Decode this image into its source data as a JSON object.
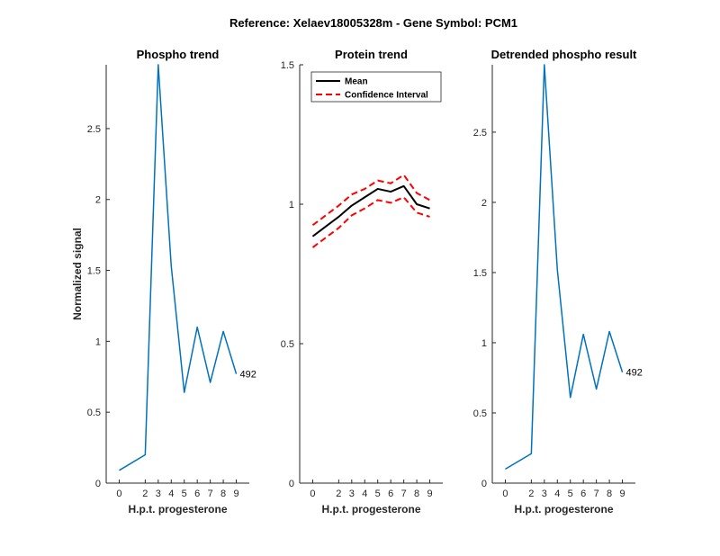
{
  "figure": {
    "suptitle": "Reference:  Xelaev18005328m - Gene Symbol:  PCM1"
  },
  "chart_data": [
    {
      "type": "line",
      "title": "Phospho trend",
      "xlabel": "H.p.t. progesterone",
      "ylabel": "Normalized signal",
      "x": [
        0,
        2,
        3,
        4,
        5,
        6,
        7,
        8,
        9
      ],
      "xticks": [
        "0",
        "2",
        "3",
        "4",
        "5",
        "6",
        "7",
        "8",
        "9"
      ],
      "ylim": [
        0,
        2.95
      ],
      "yticks": [
        "0",
        "0.5",
        "1",
        "1.5",
        "2",
        "2.5"
      ],
      "series": [
        {
          "values": [
            0.09,
            0.2,
            2.95,
            1.53,
            0.64,
            1.1,
            0.71,
            1.07,
            0.77
          ],
          "color": "#0072BD"
        }
      ],
      "annotation": "492"
    },
    {
      "type": "line",
      "title": "Protein trend",
      "xlabel": "H.p.t. progesterone",
      "ylabel": "",
      "x": [
        0,
        2,
        3,
        4,
        5,
        6,
        7,
        8,
        9
      ],
      "xticks": [
        "0",
        "2",
        "3",
        "4",
        "5",
        "6",
        "7",
        "8",
        "9"
      ],
      "ylim": [
        0,
        1.5
      ],
      "yticks": [
        "0",
        "0.5",
        "1",
        "1.5"
      ],
      "legend": {
        "position": "top-left"
      },
      "series": [
        {
          "name": "Mean",
          "values": [
            0.885,
            0.955,
            0.995,
            1.025,
            1.055,
            1.045,
            1.065,
            1.0,
            0.985
          ],
          "color": "#000000",
          "style": "solid"
        },
        {
          "name": "Confidence Interval",
          "values": [
            0.925,
            0.995,
            1.035,
            1.055,
            1.085,
            1.075,
            1.105,
            1.04,
            1.015
          ],
          "color": "#FF0000",
          "style": "dashed"
        },
        {
          "name": "",
          "values": [
            0.845,
            0.915,
            0.96,
            0.985,
            1.015,
            1.005,
            1.025,
            0.97,
            0.955
          ],
          "color": "#FF0000",
          "style": "dashed"
        }
      ]
    },
    {
      "type": "line",
      "title": "Detrended phospho result",
      "xlabel": "H.p.t. progesterone",
      "ylabel": "",
      "x": [
        0,
        2,
        3,
        4,
        5,
        6,
        7,
        8,
        9
      ],
      "xticks": [
        "0",
        "2",
        "3",
        "4",
        "5",
        "6",
        "7",
        "8",
        "9"
      ],
      "ylim": [
        0,
        2.98
      ],
      "yticks": [
        "0",
        "0.5",
        "1",
        "1.5",
        "2",
        "2.5"
      ],
      "series": [
        {
          "values": [
            0.1,
            0.21,
            2.98,
            1.52,
            0.61,
            1.06,
            0.67,
            1.08,
            0.79
          ],
          "color": "#0072BD"
        }
      ],
      "annotation": "492"
    }
  ]
}
